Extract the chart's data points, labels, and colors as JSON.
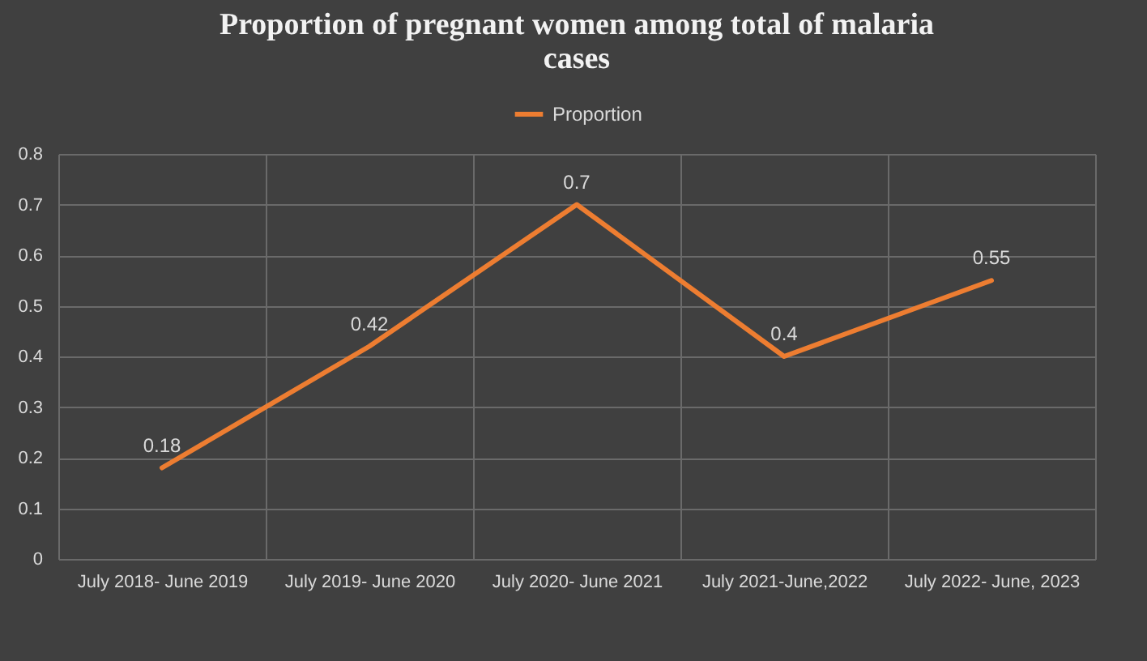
{
  "chart_data": {
    "type": "line",
    "title": "Proportion of pregnant women among total of malaria cases",
    "categories": [
      "July 2018- June 2019",
      "July 2019- June 2020",
      "July 2020- June 2021",
      "July 2021-June,2022",
      "July 2022- June, 2023"
    ],
    "series": [
      {
        "name": "Proportion",
        "color": "#ed7d31",
        "values": [
          0.18,
          0.42,
          0.7,
          0.4,
          0.55
        ]
      }
    ],
    "ylim": [
      0,
      0.8
    ],
    "yticks": [
      0,
      0.1,
      0.2,
      0.3,
      0.4,
      0.5,
      0.6,
      0.7,
      0.8
    ],
    "grid": true,
    "legend": "top",
    "data_labels": true,
    "marker": "none",
    "line_style": "solid"
  }
}
